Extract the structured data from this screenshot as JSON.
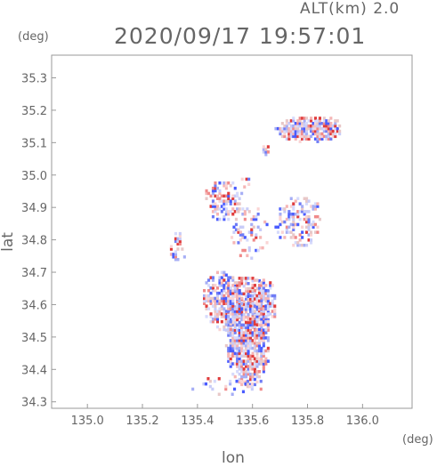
{
  "header": {
    "altitude_label": "ALT(km)  2.0",
    "timestamp": "2020/09/17 19:57:01"
  },
  "chart_data": {
    "type": "scatter",
    "title": "2020/09/17 19:57:01",
    "xlabel": "lon",
    "ylabel": "lat",
    "x_unit": "(deg)",
    "y_unit": "(deg)",
    "xlim": [
      134.87,
      136.18
    ],
    "ylim": [
      34.28,
      35.37
    ],
    "x_ticks": [
      "135.0",
      "135.2",
      "135.4",
      "135.6",
      "135.8",
      "136.0"
    ],
    "x_tick_values": [
      135.0,
      135.2,
      135.4,
      135.6,
      135.8,
      136.0
    ],
    "y_ticks": [
      "34.3",
      "34.4",
      "34.5",
      "34.6",
      "34.7",
      "34.8",
      "34.9",
      "35.0",
      "35.1",
      "35.2",
      "35.3"
    ],
    "y_tick_values": [
      34.3,
      34.4,
      34.5,
      34.6,
      34.7,
      34.8,
      34.9,
      35.0,
      35.1,
      35.2,
      35.3
    ],
    "grid": false,
    "colors": {
      "positive": "#e03c3c",
      "negative": "#4a5cff",
      "axis": "#999999"
    },
    "clusters": [
      {
        "lon": [
          135.68,
          135.92
        ],
        "lat": [
          35.1,
          35.18
        ],
        "density": 0.85
      },
      {
        "lon": [
          135.5,
          135.66
        ],
        "lat": [
          34.35,
          34.68
        ],
        "density": 0.85
      },
      {
        "lon": [
          135.42,
          135.56
        ],
        "lat": [
          34.52,
          34.7
        ],
        "density": 0.65
      },
      {
        "lon": [
          135.58,
          135.68
        ],
        "lat": [
          34.52,
          34.68
        ],
        "density": 0.6
      },
      {
        "lon": [
          135.68,
          135.85
        ],
        "lat": [
          34.78,
          34.93
        ],
        "density": 0.45
      },
      {
        "lon": [
          135.42,
          135.56
        ],
        "lat": [
          34.86,
          34.98
        ],
        "density": 0.45
      },
      {
        "lon": [
          135.52,
          135.65
        ],
        "lat": [
          34.74,
          34.9
        ],
        "density": 0.25
      },
      {
        "lon": [
          135.37,
          135.65
        ],
        "lat": [
          34.32,
          34.37
        ],
        "density": 0.15
      },
      {
        "lon": [
          135.3,
          135.35
        ],
        "lat": [
          34.72,
          34.82
        ],
        "density": 0.35
      },
      {
        "lon": [
          135.55,
          135.6
        ],
        "lat": [
          34.96,
          35.0
        ],
        "density": 0.4
      },
      {
        "lon": [
          135.62,
          135.66
        ],
        "lat": [
          35.06,
          35.09
        ],
        "density": 0.4
      }
    ]
  }
}
